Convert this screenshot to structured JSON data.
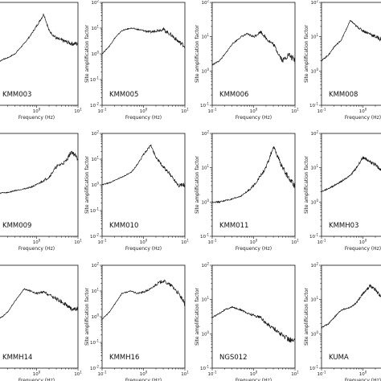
{
  "chart_data": [
    {
      "type": "line",
      "title": "KMM003",
      "xlabel": "Frequency (Hz)",
      "ylabel": "",
      "xscale": "log",
      "yscale": "log",
      "xlim": [
        0.1,
        10
      ],
      "ylim": [
        0.01,
        100
      ],
      "x": [
        0.1,
        0.15,
        0.2,
        0.3,
        0.5,
        0.7,
        1.0,
        1.5,
        2.0,
        3.0,
        5.0,
        7.0,
        10.0
      ],
      "values": [
        0.4,
        0.6,
        0.7,
        1.0,
        2.5,
        5.0,
        12,
        35,
        8,
        4,
        3,
        2.5,
        2.5
      ]
    },
    {
      "type": "line",
      "title": "KMM005",
      "xlabel": "Frequency (Hz)",
      "ylabel": "Site amplification factor",
      "xscale": "log",
      "yscale": "log",
      "xlim": [
        0.1,
        10
      ],
      "ylim": [
        0.01,
        100
      ],
      "x": [
        0.1,
        0.15,
        0.2,
        0.3,
        0.5,
        0.7,
        1.0,
        1.5,
        2.0,
        3.0,
        5.0,
        7.0,
        10.0
      ],
      "values": [
        1.0,
        2.0,
        4.0,
        8.0,
        10,
        9,
        8,
        7,
        8,
        9,
        5,
        3,
        2
      ]
    },
    {
      "type": "line",
      "title": "KMM006",
      "xlabel": "Frequency (Hz)",
      "ylabel": "Site amplification factor",
      "xscale": "log",
      "yscale": "log",
      "xlim": [
        0.1,
        10
      ],
      "ylim": [
        0.1,
        100
      ],
      "x": [
        0.1,
        0.15,
        0.2,
        0.3,
        0.5,
        0.7,
        1.0,
        1.5,
        2.0,
        3.0,
        5.0,
        7.0,
        10.0
      ],
      "values": [
        1.5,
        2.0,
        3.0,
        6.0,
        10,
        12,
        10,
        14,
        9,
        6,
        2,
        3,
        2
      ]
    },
    {
      "type": "line",
      "title": "KMM008",
      "xlabel": "Frequency (Hz)",
      "ylabel": "Site amplification factor",
      "xscale": "log",
      "yscale": "log",
      "xlim": [
        0.1,
        10
      ],
      "ylim": [
        0.1,
        100
      ],
      "x": [
        0.1,
        0.15,
        0.2,
        0.3,
        0.5,
        0.7,
        1.0,
        1.5,
        2.0,
        3.0,
        5.0
      ],
      "values": [
        2.0,
        3.0,
        5.0,
        8.0,
        30,
        20,
        15,
        12,
        10,
        8,
        6
      ]
    },
    {
      "type": "line",
      "title": "KMM009",
      "xlabel": "Frequency (Hz)",
      "ylabel": "",
      "xscale": "log",
      "yscale": "log",
      "xlim": [
        0.1,
        10
      ],
      "ylim": [
        0.01,
        100
      ],
      "x": [
        0.1,
        0.15,
        0.2,
        0.3,
        0.5,
        0.7,
        1.0,
        1.5,
        2.0,
        3.0,
        5.0,
        7.0,
        10.0
      ],
      "values": [
        0.4,
        0.5,
        0.5,
        0.6,
        0.7,
        0.8,
        1.0,
        1.5,
        2.0,
        5.0,
        8.0,
        20,
        10
      ]
    },
    {
      "type": "line",
      "title": "KMM010",
      "xlabel": "Frequency (Hz)",
      "ylabel": "Site amplification factor",
      "xscale": "log",
      "yscale": "log",
      "xlim": [
        0.1,
        10
      ],
      "ylim": [
        0.01,
        100
      ],
      "x": [
        0.1,
        0.15,
        0.2,
        0.3,
        0.5,
        0.7,
        1.0,
        1.5,
        2.0,
        3.0,
        5.0,
        7.0,
        10.0
      ],
      "values": [
        1.0,
        1.2,
        1.5,
        2.0,
        3.0,
        6.0,
        15,
        35,
        12,
        5,
        2,
        1,
        1
      ]
    },
    {
      "type": "line",
      "title": "KMM011",
      "xlabel": "Frequency (Hz)",
      "ylabel": "Site amplification factor",
      "xscale": "log",
      "yscale": "log",
      "xlim": [
        0.1,
        10
      ],
      "ylim": [
        0.1,
        100
      ],
      "x": [
        0.1,
        0.15,
        0.2,
        0.3,
        0.5,
        0.7,
        1.0,
        1.5,
        2.0,
        3.0,
        5.0,
        7.0,
        10.0
      ],
      "values": [
        1.0,
        1.0,
        1.1,
        1.2,
        1.5,
        2.0,
        3.0,
        6.0,
        10,
        40,
        10,
        5,
        3
      ]
    },
    {
      "type": "line",
      "title": "KMMH03",
      "xlabel": "Frequency (Hz)",
      "ylabel": "Site amplification factor",
      "xscale": "log",
      "yscale": "log",
      "xlim": [
        0.1,
        10
      ],
      "ylim": [
        0.1,
        100
      ],
      "x": [
        0.1,
        0.15,
        0.2,
        0.3,
        0.5,
        0.7,
        1.0,
        1.5,
        2.0,
        3.0,
        5.0
      ],
      "values": [
        2.0,
        2.5,
        3.0,
        4.0,
        6.0,
        10,
        20,
        15,
        12,
        8,
        6
      ]
    },
    {
      "type": "line",
      "title": "KMMH14",
      "xlabel": "Frequency (Hz)",
      "ylabel": "",
      "xscale": "log",
      "yscale": "log",
      "xlim": [
        0.1,
        10
      ],
      "ylim": [
        0.01,
        100
      ],
      "x": [
        0.1,
        0.15,
        0.2,
        0.3,
        0.5,
        0.7,
        1.0,
        1.5,
        2.0,
        3.0,
        5.0,
        7.0,
        10.0
      ],
      "values": [
        0.7,
        1.0,
        1.5,
        4.0,
        12,
        10,
        8,
        9,
        7,
        5,
        3,
        2,
        2
      ]
    },
    {
      "type": "line",
      "title": "KMMH16",
      "xlabel": "Frequency (Hz)",
      "ylabel": "Site amplification factor",
      "xscale": "log",
      "yscale": "log",
      "xlim": [
        0.1,
        10
      ],
      "ylim": [
        0.01,
        100
      ],
      "x": [
        0.1,
        0.15,
        0.2,
        0.3,
        0.5,
        0.7,
        1.0,
        1.5,
        2.0,
        3.0,
        5.0,
        7.0,
        10.0
      ],
      "values": [
        0.8,
        1.5,
        3.0,
        8.0,
        10,
        8,
        9,
        12,
        18,
        25,
        15,
        8,
        3
      ]
    },
    {
      "type": "line",
      "title": "NGS012",
      "xlabel": "Frequency (Hz)",
      "ylabel": "Site amplification factor",
      "xscale": "log",
      "yscale": "log",
      "xlim": [
        0.1,
        10
      ],
      "ylim": [
        0.1,
        100
      ],
      "x": [
        0.1,
        0.15,
        0.2,
        0.3,
        0.5,
        0.7,
        1.0,
        1.5,
        2.0,
        3.0,
        5.0,
        7.0,
        10.0
      ],
      "values": [
        3.0,
        4.0,
        5.0,
        6.0,
        5.0,
        4.0,
        3.5,
        3.0,
        2.0,
        1.5,
        0.9,
        0.7,
        0.6
      ]
    },
    {
      "type": "line",
      "title": "KUMA",
      "xlabel": "Frequency (Hz)",
      "ylabel": "Site amplification factor",
      "xscale": "log",
      "yscale": "log",
      "xlim": [
        0.1,
        10
      ],
      "ylim": [
        0.1,
        100
      ],
      "x": [
        0.1,
        0.15,
        0.2,
        0.3,
        0.5,
        0.7,
        1.0,
        1.5,
        2.0,
        3.0,
        5.0
      ],
      "values": [
        1.5,
        2.0,
        3.0,
        5.0,
        6.0,
        8.0,
        15,
        25,
        20,
        10,
        6
      ]
    }
  ]
}
